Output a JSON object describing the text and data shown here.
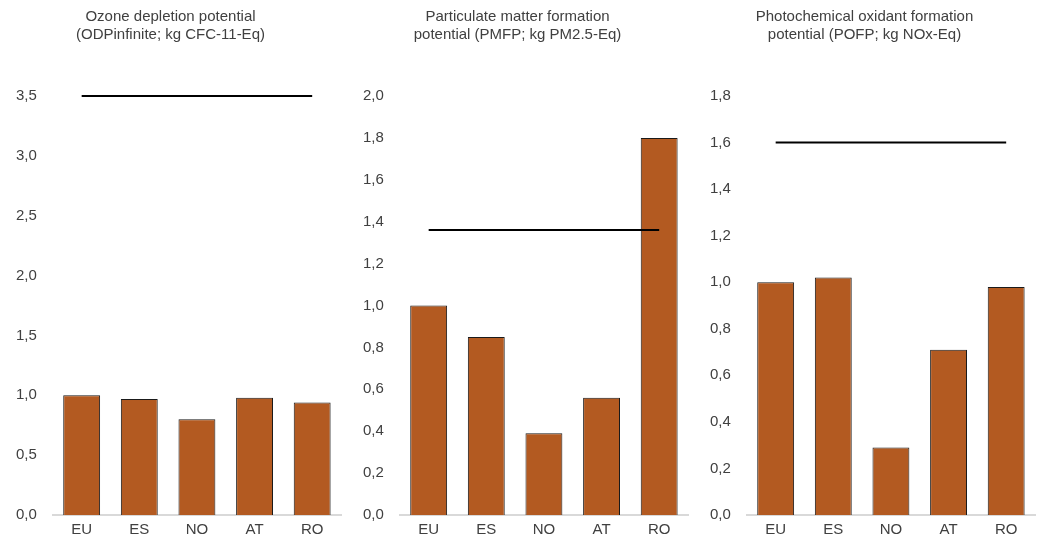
{
  "chart_data": [
    {
      "type": "bar",
      "title": "Ozone depletion potential\n(ODPinfinite; kg CFC-11-Eq)",
      "categories": [
        "EU",
        "ES",
        "NO",
        "AT",
        "RO"
      ],
      "values": [
        1.0,
        0.97,
        0.8,
        0.98,
        0.94
      ],
      "color": "#b35a21",
      "ylim": [
        0,
        3.5
      ],
      "yticks": [
        {
          "value": 0,
          "label": "0,0"
        },
        {
          "value": 0.5,
          "label": "0,5"
        },
        {
          "value": 1,
          "label": "1,0"
        },
        {
          "value": 1.5,
          "label": "1,5"
        },
        {
          "value": 2,
          "label": "2,0"
        },
        {
          "value": 2.5,
          "label": "2,5"
        },
        {
          "value": 3,
          "label": "3,0"
        },
        {
          "value": 3.5,
          "label": "3,5"
        }
      ],
      "grid": false,
      "ref_lines": [
        {
          "axis": "y",
          "value": 3.5,
          "color": "#000000"
        }
      ]
    },
    {
      "type": "bar",
      "title": "Particulate matter formation\npotential (PMFP; kg PM2.5-Eq)",
      "categories": [
        "EU",
        "ES",
        "NO",
        "AT",
        "RO"
      ],
      "values": [
        1.0,
        0.85,
        0.39,
        0.56,
        1.8
      ],
      "color": "#b35a21",
      "ylim": [
        0,
        2
      ],
      "yticks": [
        {
          "value": 0,
          "label": "0,0"
        },
        {
          "value": 0.2,
          "label": "0,2"
        },
        {
          "value": 0.4,
          "label": "0,4"
        },
        {
          "value": 0.6,
          "label": "0,6"
        },
        {
          "value": 0.8,
          "label": "0,8"
        },
        {
          "value": 1,
          "label": "1,0"
        },
        {
          "value": 1.2,
          "label": "1,2"
        },
        {
          "value": 1.4,
          "label": "1,4"
        },
        {
          "value": 1.6,
          "label": "1,6"
        },
        {
          "value": 1.8,
          "label": "1,8"
        },
        {
          "value": 2,
          "label": "2,0"
        }
      ],
      "grid": false,
      "ref_lines": [
        {
          "axis": "y",
          "value": 1.36,
          "color": "#000000"
        }
      ]
    },
    {
      "type": "bar",
      "title": "Photochemical oxidant formation\npotential (POFP; kg NOx-Eq)",
      "categories": [
        "EU",
        "ES",
        "NO",
        "AT",
        "RO"
      ],
      "values": [
        1.0,
        1.02,
        0.29,
        0.71,
        0.98
      ],
      "color": "#b35a21",
      "ylim": [
        0,
        1.8
      ],
      "yticks": [
        {
          "value": 0,
          "label": "0,0"
        },
        {
          "value": 0.2,
          "label": "0,2"
        },
        {
          "value": 0.4,
          "label": "0,4"
        },
        {
          "value": 0.6,
          "label": "0,6"
        },
        {
          "value": 0.8,
          "label": "0,8"
        },
        {
          "value": 1,
          "label": "1,0"
        },
        {
          "value": 1.2,
          "label": "1,2"
        },
        {
          "value": 1.4,
          "label": "1,4"
        },
        {
          "value": 1.6,
          "label": "1,6"
        },
        {
          "value": 1.8,
          "label": "1,8"
        }
      ],
      "grid": false,
      "ref_lines": [
        {
          "axis": "y",
          "value": 1.6,
          "color": "#000000"
        }
      ]
    }
  ]
}
